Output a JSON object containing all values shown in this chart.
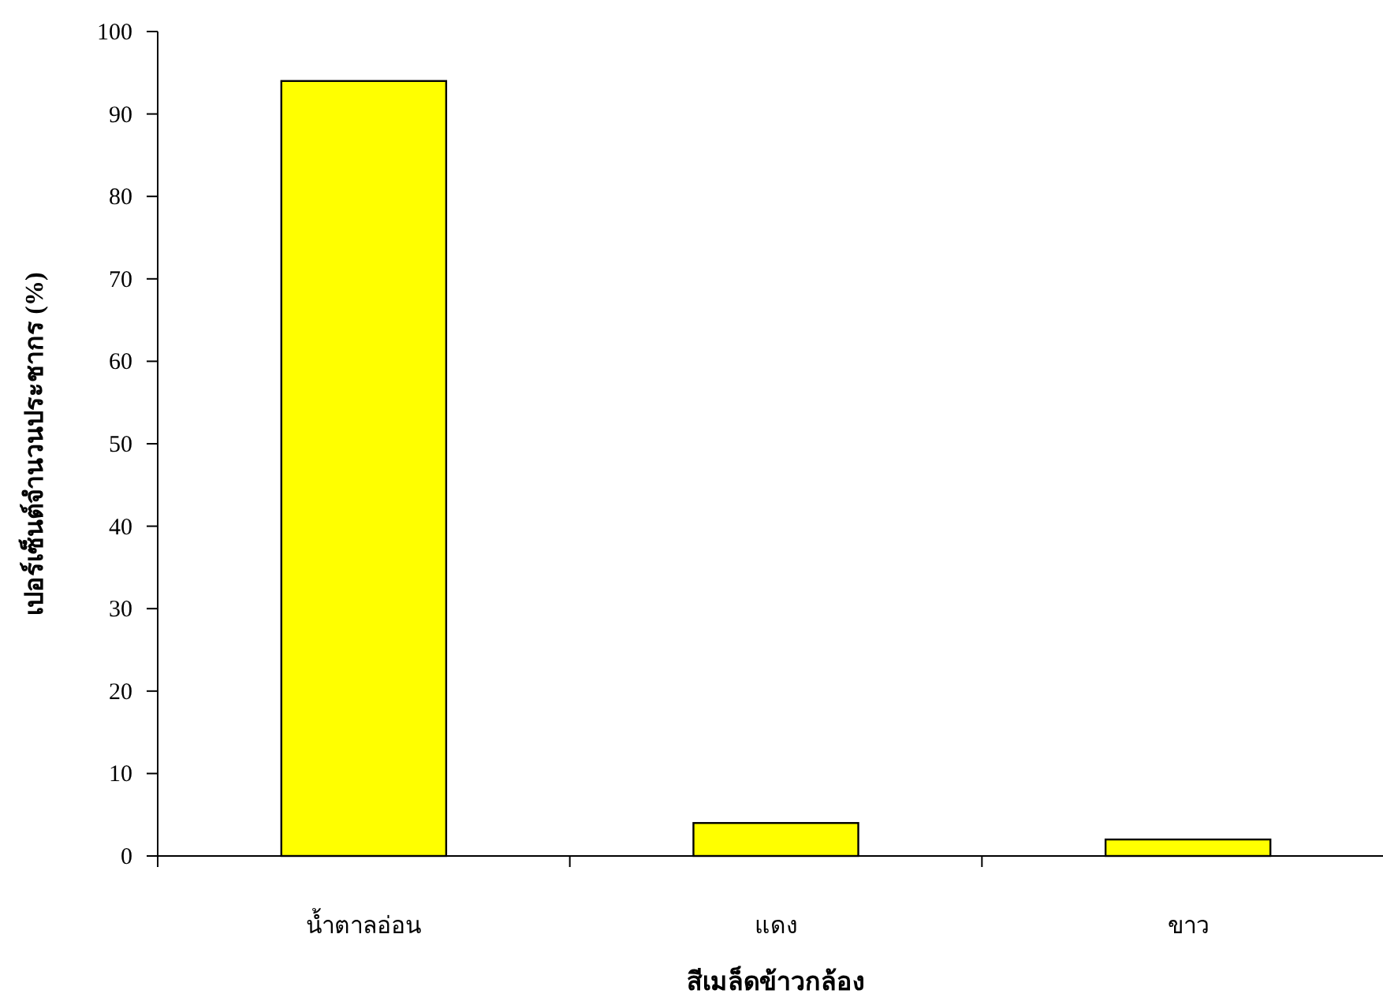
{
  "chart_data": {
    "type": "bar",
    "xlabel": "สีเมล็ดข้าวกล้อง",
    "ylabel": "เปอร์เซ็นต์จำนวนประชากร (%)",
    "categories": [
      "น้ำตาลอ่อน",
      "แดง",
      "ขาว"
    ],
    "values": [
      94,
      4,
      2
    ],
    "color": "#ffff00",
    "ylim": [
      0,
      100
    ],
    "yticks": [
      0,
      10,
      20,
      30,
      40,
      50,
      60,
      70,
      80,
      90,
      100
    ]
  }
}
